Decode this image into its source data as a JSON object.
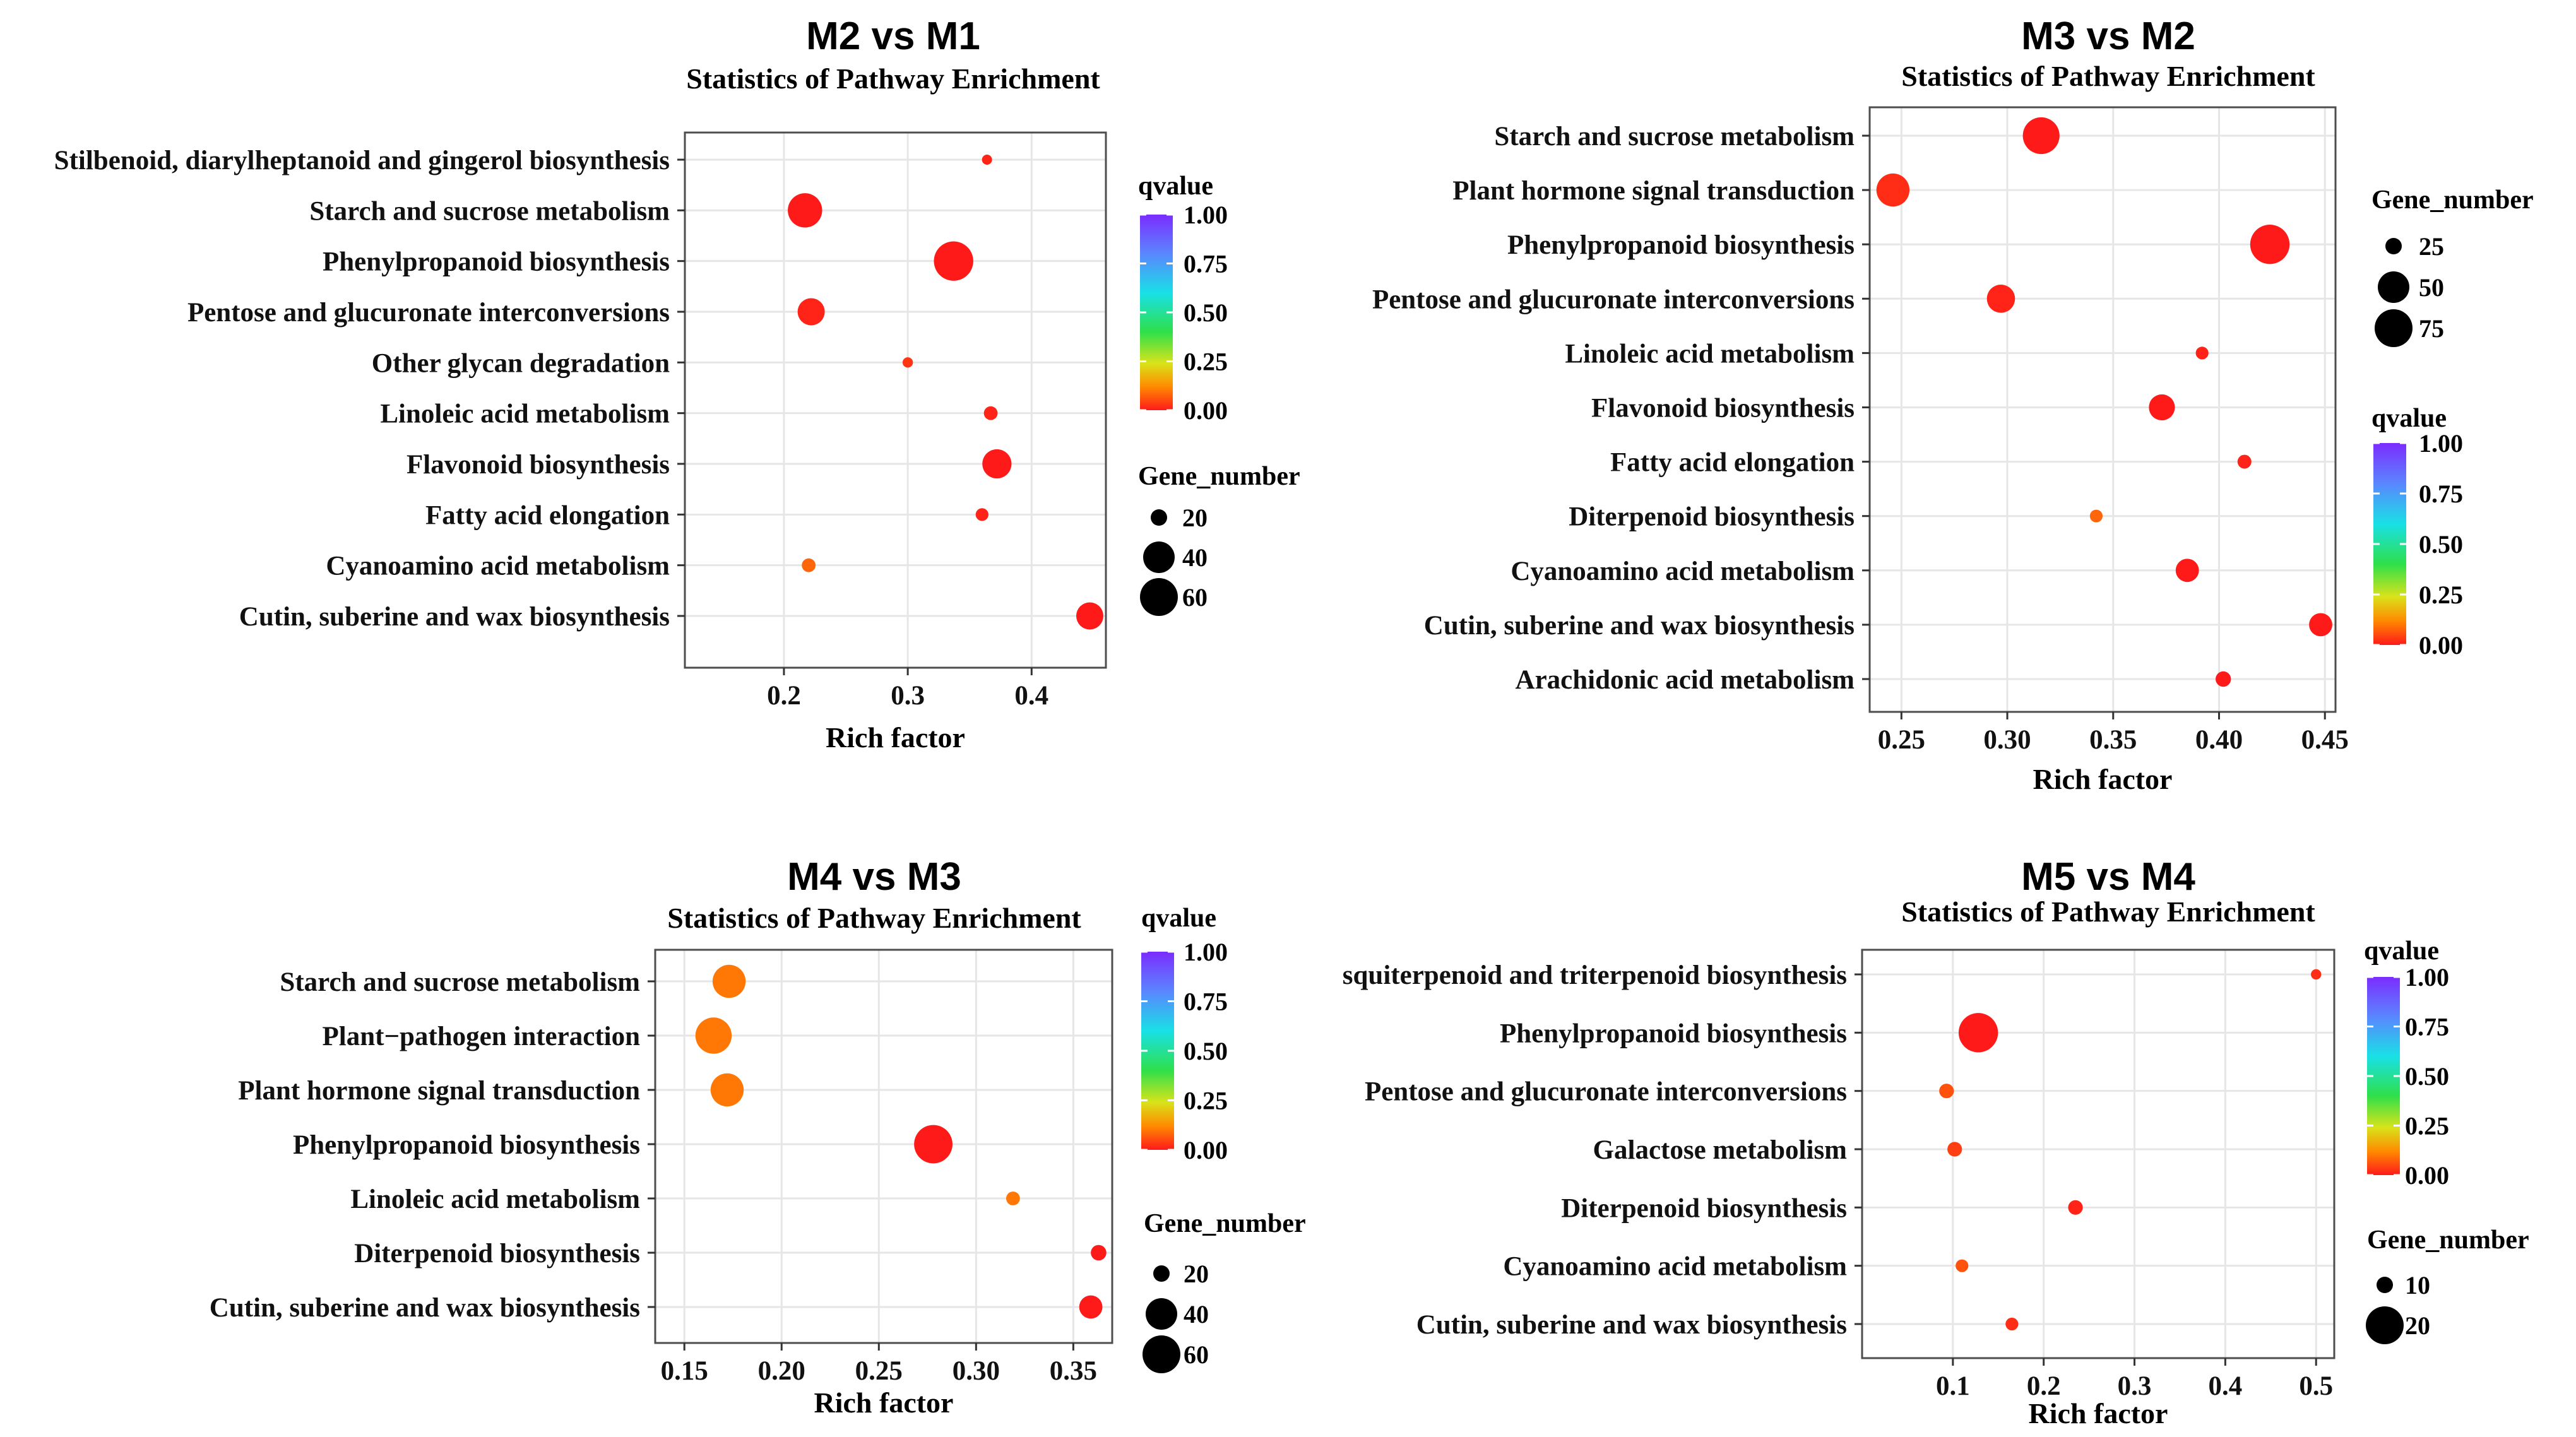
{
  "figure": {
    "panels": 4
  },
  "legend_titles": {
    "qvalue": "qvalue",
    "gene_number": "Gene_number"
  },
  "chart_data": [
    {
      "type": "scatter",
      "title": "M2 vs M1",
      "subtitle": "Statistics of Pathway Enrichment",
      "xlabel": "Rich factor",
      "ylabel": "",
      "xlim": [
        0.12,
        0.46
      ],
      "xticks": [
        0.2,
        0.3,
        0.4
      ],
      "xtick_labels": [
        "0.2",
        "0.3",
        "0.4"
      ],
      "categories": [
        "Stilbenoid, diarylheptanoid and gingerol biosynthesis",
        "Starch and sucrose metabolism",
        "Phenylpropanoid biosynthesis",
        "Pentose and glucuronate interconversions",
        "Other glycan degradation",
        "Linoleic acid metabolism",
        "Flavonoid biosynthesis",
        "Fatty acid elongation",
        "Cyanoamino acid metabolism",
        "Cutin, suberine and wax biosynthesis"
      ],
      "points": [
        {
          "pathway": "Stilbenoid, diarylheptanoid and gingerol biosynthesis",
          "rich_factor": 0.364,
          "gene_number": 6,
          "qvalue": 0.01
        },
        {
          "pathway": "Starch and sucrose metabolism",
          "rich_factor": 0.217,
          "gene_number": 48,
          "qvalue": 0.0
        },
        {
          "pathway": "Phenylpropanoid biosynthesis",
          "rich_factor": 0.337,
          "gene_number": 68,
          "qvalue": 0.0
        },
        {
          "pathway": "Pentose and glucuronate interconversions",
          "rich_factor": 0.222,
          "gene_number": 30,
          "qvalue": 0.01
        },
        {
          "pathway": "Other glycan degradation",
          "rich_factor": 0.3,
          "gene_number": 8,
          "qvalue": 0.03
        },
        {
          "pathway": "Linoleic acid metabolism",
          "rich_factor": 0.367,
          "gene_number": 14,
          "qvalue": 0.01
        },
        {
          "pathway": "Flavonoid biosynthesis",
          "rich_factor": 0.372,
          "gene_number": 34,
          "qvalue": 0.0
        },
        {
          "pathway": "Fatty acid elongation",
          "rich_factor": 0.36,
          "gene_number": 12,
          "qvalue": 0.01
        },
        {
          "pathway": "Cyanoamino acid metabolism",
          "rich_factor": 0.22,
          "gene_number": 14,
          "qvalue": 0.08
        },
        {
          "pathway": "Cutin, suberine and wax biosynthesis",
          "rich_factor": 0.447,
          "gene_number": 30,
          "qvalue": 0.0
        }
      ],
      "qvalue_legend": {
        "title": "qvalue",
        "ticks": [
          "1.00",
          "0.75",
          "0.50",
          "0.25",
          "0.00"
        ]
      },
      "size_legend": {
        "title": "Gene_number",
        "values": [
          20,
          40,
          60
        ],
        "labels": [
          "20",
          "40",
          "60"
        ]
      }
    },
    {
      "type": "scatter",
      "title": "M3 vs M2",
      "subtitle": "Statistics of Pathway Enrichment",
      "xlabel": "Rich factor",
      "ylabel": "",
      "xlim": [
        0.235,
        0.455
      ],
      "xticks": [
        0.25,
        0.3,
        0.35,
        0.4,
        0.45
      ],
      "xtick_labels": [
        "0.25",
        "0.30",
        "0.35",
        "0.40",
        "0.45"
      ],
      "categories": [
        "Starch and sucrose metabolism",
        "Plant hormone signal transduction",
        "Phenylpropanoid biosynthesis",
        "Pentose and glucuronate interconversions",
        "Linoleic acid metabolism",
        "Flavonoid biosynthesis",
        "Fatty acid elongation",
        "Diterpenoid biosynthesis",
        "Cyanoamino acid metabolism",
        "Cutin, suberine and wax biosynthesis",
        "Arachidonic acid metabolism"
      ],
      "points": [
        {
          "pathway": "Starch and sucrose metabolism",
          "rich_factor": 0.316,
          "gene_number": 70,
          "qvalue": 0.0
        },
        {
          "pathway": "Plant hormone signal transduction",
          "rich_factor": 0.246,
          "gene_number": 55,
          "qvalue": 0.02
        },
        {
          "pathway": "Phenylpropanoid biosynthesis",
          "rich_factor": 0.424,
          "gene_number": 90,
          "qvalue": 0.0
        },
        {
          "pathway": "Pentose and glucuronate interconversions",
          "rich_factor": 0.297,
          "gene_number": 40,
          "qvalue": 0.01
        },
        {
          "pathway": "Linoleic acid metabolism",
          "rich_factor": 0.392,
          "gene_number": 15,
          "qvalue": 0.01
        },
        {
          "pathway": "Flavonoid biosynthesis",
          "rich_factor": 0.373,
          "gene_number": 35,
          "qvalue": 0.0
        },
        {
          "pathway": "Fatty acid elongation",
          "rich_factor": 0.412,
          "gene_number": 18,
          "qvalue": 0.01
        },
        {
          "pathway": "Diterpenoid biosynthesis",
          "rich_factor": 0.342,
          "gene_number": 15,
          "qvalue": 0.08
        },
        {
          "pathway": "Cyanoamino acid metabolism",
          "rich_factor": 0.385,
          "gene_number": 30,
          "qvalue": 0.0
        },
        {
          "pathway": "Cutin, suberine and wax biosynthesis",
          "rich_factor": 0.448,
          "gene_number": 30,
          "qvalue": 0.0
        },
        {
          "pathway": "Arachidonic acid metabolism",
          "rich_factor": 0.402,
          "gene_number": 22,
          "qvalue": 0.0
        }
      ],
      "qvalue_legend": {
        "title": "qvalue",
        "ticks": [
          "1.00",
          "0.75",
          "0.50",
          "0.25",
          "0.00"
        ]
      },
      "size_legend": {
        "title": "Gene_number",
        "values": [
          25,
          50,
          75
        ],
        "labels": [
          "25",
          "50",
          "75"
        ]
      }
    },
    {
      "type": "scatter",
      "title": "M4 vs M3",
      "subtitle": "Statistics of Pathway Enrichment",
      "xlabel": "Rich factor",
      "ylabel": "",
      "xlim": [
        0.135,
        0.37
      ],
      "xticks": [
        0.15,
        0.2,
        0.25,
        0.3,
        0.35
      ],
      "xtick_labels": [
        "0.15",
        "0.20",
        "0.25",
        "0.30",
        "0.35"
      ],
      "categories": [
        "Starch and sucrose metabolism",
        "Plant−pathogen interaction",
        "Plant hormone signal transduction",
        "Phenylpropanoid biosynthesis",
        "Linoleic acid metabolism",
        "Diterpenoid biosynthesis",
        "Cutin, suberine and wax biosynthesis"
      ],
      "points": [
        {
          "pathway": "Starch and sucrose metabolism",
          "rich_factor": 0.173,
          "gene_number": 44,
          "qvalue": 0.1
        },
        {
          "pathway": "Plant−pathogen interaction",
          "rich_factor": 0.165,
          "gene_number": 54,
          "qvalue": 0.1
        },
        {
          "pathway": "Plant hormone signal transduction",
          "rich_factor": 0.172,
          "gene_number": 44,
          "qvalue": 0.1
        },
        {
          "pathway": "Phenylpropanoid biosynthesis",
          "rich_factor": 0.278,
          "gene_number": 62,
          "qvalue": 0.0
        },
        {
          "pathway": "Linoleic acid metabolism",
          "rich_factor": 0.319,
          "gene_number": 14,
          "qvalue": 0.1
        },
        {
          "pathway": "Diterpenoid biosynthesis",
          "rich_factor": 0.363,
          "gene_number": 18,
          "qvalue": 0.0
        },
        {
          "pathway": "Cutin, suberine and wax biosynthesis",
          "rich_factor": 0.359,
          "gene_number": 24,
          "qvalue": 0.0
        }
      ],
      "qvalue_legend": {
        "title": "qvalue",
        "ticks": [
          "1.00",
          "0.75",
          "0.50",
          "0.25",
          "0.00"
        ]
      },
      "size_legend": {
        "title": "Gene_number",
        "values": [
          20,
          40,
          60
        ],
        "labels": [
          "20",
          "40",
          "60"
        ]
      }
    },
    {
      "type": "scatter",
      "title": "M5 vs M4",
      "subtitle": "Statistics of Pathway Enrichment",
      "xlabel": "Rich factor",
      "ylabel": "",
      "xlim": [
        0.0,
        0.52
      ],
      "xticks": [
        0.1,
        0.2,
        0.3,
        0.4,
        0.5
      ],
      "xtick_labels": [
        "0.1",
        "0.2",
        "0.3",
        "0.4",
        "0.5"
      ],
      "categories": [
        "squiterpenoid and triterpenoid biosynthesis",
        "Phenylpropanoid biosynthesis",
        "Pentose and glucuronate interconversions",
        "Galactose metabolism",
        "Diterpenoid biosynthesis",
        "Cyanoamino acid metabolism",
        "Cutin, suberine and wax biosynthesis"
      ],
      "points": [
        {
          "pathway": "squiterpenoid and triterpenoid biosynthesis",
          "rich_factor": 0.5,
          "gene_number": 4,
          "qvalue": 0.02
        },
        {
          "pathway": "Phenylpropanoid biosynthesis",
          "rich_factor": 0.128,
          "gene_number": 25,
          "qvalue": 0.0
        },
        {
          "pathway": "Pentose and glucuronate interconversions",
          "rich_factor": 0.093,
          "gene_number": 8,
          "qvalue": 0.06
        },
        {
          "pathway": "Galactose metabolism",
          "rich_factor": 0.102,
          "gene_number": 8,
          "qvalue": 0.04
        },
        {
          "pathway": "Diterpenoid biosynthesis",
          "rich_factor": 0.235,
          "gene_number": 8,
          "qvalue": 0.01
        },
        {
          "pathway": "Cyanoamino acid metabolism",
          "rich_factor": 0.11,
          "gene_number": 6,
          "qvalue": 0.06
        },
        {
          "pathway": "Cutin, suberine and wax biosynthesis",
          "rich_factor": 0.165,
          "gene_number": 6,
          "qvalue": 0.02
        }
      ],
      "qvalue_legend": {
        "title": "qvalue",
        "ticks": [
          "1.00",
          "0.75",
          "0.50",
          "0.25",
          "0.00"
        ]
      },
      "size_legend": {
        "title": "Gene_number",
        "values": [
          10,
          20
        ],
        "labels": [
          "10",
          "20"
        ]
      }
    }
  ]
}
